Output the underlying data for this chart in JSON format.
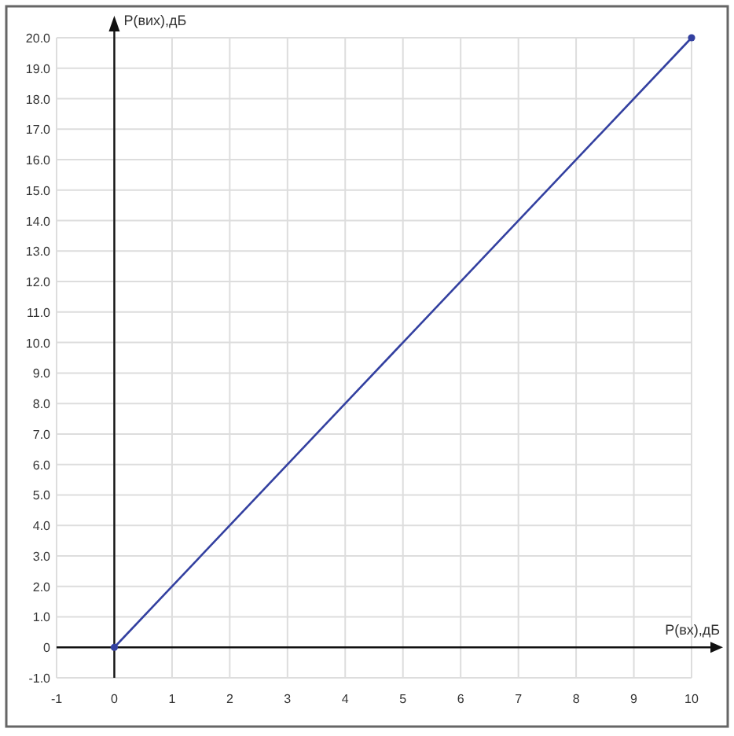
{
  "chart_data": {
    "type": "line",
    "xlabel": "P(вх),дБ",
    "ylabel": "P(вих),дБ",
    "x": [
      0,
      10
    ],
    "series": [
      {
        "color": "#3340a0",
        "values": [
          0,
          20
        ]
      }
    ],
    "xlim": [
      -1,
      10
    ],
    "ylim": [
      -1,
      20
    ],
    "xticks": [
      -1,
      0,
      1,
      2,
      3,
      4,
      5,
      6,
      7,
      8,
      9,
      10
    ],
    "yticks": [
      {
        "value": -1,
        "label": "-1.0"
      },
      0,
      {
        "value": 1,
        "label": "1.0"
      },
      {
        "value": 2,
        "label": "2.0"
      },
      {
        "value": 3,
        "label": "3.0"
      },
      {
        "value": 4,
        "label": "4.0"
      },
      {
        "value": 5,
        "label": "5.0"
      },
      {
        "value": 6,
        "label": "6.0"
      },
      {
        "value": 7,
        "label": "7.0"
      },
      {
        "value": 8,
        "label": "8.0"
      },
      {
        "value": 9,
        "label": "9.0"
      },
      {
        "value": 10,
        "label": "10.0"
      },
      {
        "value": 11,
        "label": "11.0"
      },
      {
        "value": 12,
        "label": "12.0"
      },
      {
        "value": 13,
        "label": "13.0"
      },
      {
        "value": 14,
        "label": "14.0"
      },
      {
        "value": 15,
        "label": "15.0"
      },
      {
        "value": 16,
        "label": "16.0"
      },
      {
        "value": 17,
        "label": "17.0"
      },
      {
        "value": 18,
        "label": "18.0"
      },
      {
        "value": 19,
        "label": "19.0"
      },
      {
        "value": 20,
        "label": "20.0"
      }
    ],
    "grid": true,
    "marker": "circle",
    "line_style": "solid"
  }
}
